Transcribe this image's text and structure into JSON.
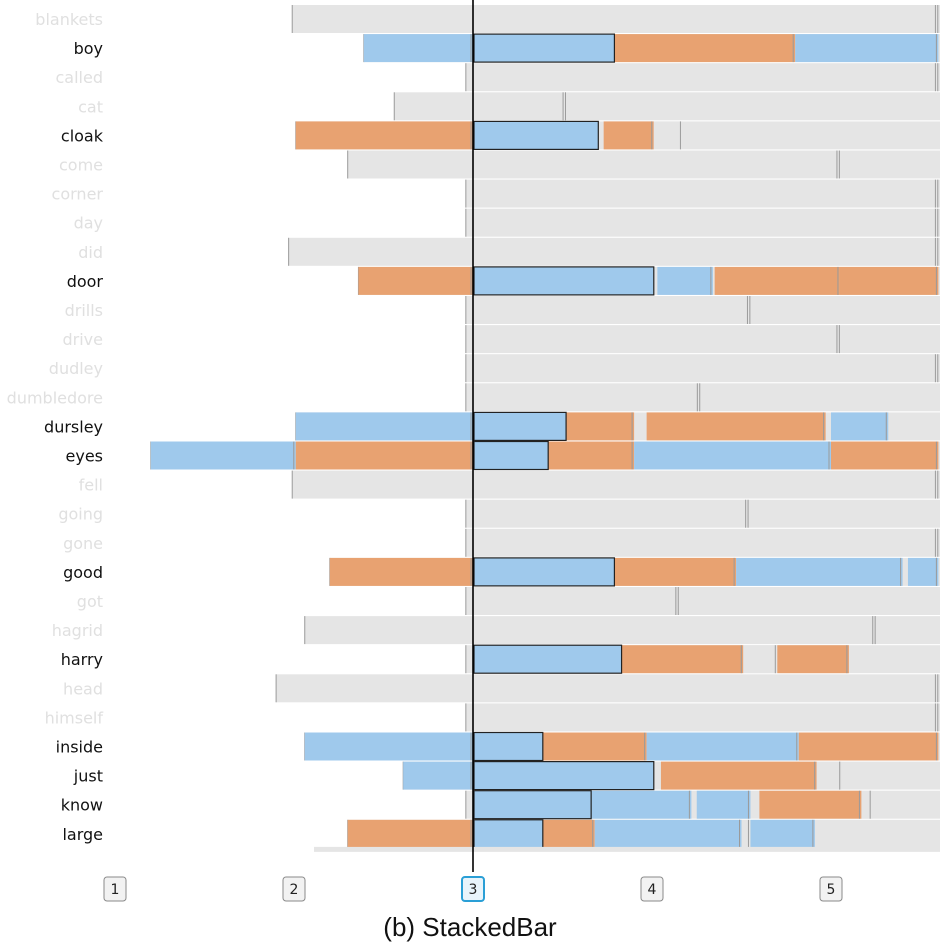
{
  "caption": "(b) StackedBar",
  "colors": {
    "blue": "#9fc9ec",
    "orange": "#e8a271",
    "gray": "#e5e5e5",
    "tick": "#9a9a9a",
    "label_active": "#111111",
    "label_inactive": "#e0e0e0",
    "axis": "#000000"
  },
  "chart_data": {
    "type": "bar",
    "x_ticks": [
      "1",
      "2",
      "3",
      "4",
      "5"
    ],
    "selected_tick": "3",
    "xlim": [
      1.0,
      5.6
    ],
    "series_colors": [
      "blue",
      "orange",
      "gray"
    ],
    "rows": [
      {
        "label": "blankets",
        "active": false,
        "start": 1.99,
        "segs": [
          [
            "gray",
            4.82,
            4.83,
            4.84,
            4.85,
            4.86,
            4.87
          ],
          [
            "gray",
            5.6
          ]
        ],
        "base_end": 3.0
      },
      {
        "label": "boy",
        "active": true,
        "start": 2.39,
        "base_end": 3.79,
        "segs": [
          [
            "blue",
            2.39,
            3.0
          ],
          [
            "orange",
            3.79,
            4.8
          ],
          [
            "blue",
            4.8,
            5.6
          ]
        ]
      },
      {
        "label": "called",
        "active": false,
        "start": 2.96,
        "segs": [
          [
            "gray",
            5.6
          ]
        ]
      },
      {
        "label": "cat",
        "active": false,
        "start": 2.56,
        "segs": [
          [
            "gray",
            3.52
          ]
        ]
      },
      {
        "label": "cloak",
        "active": true,
        "start": 2.01,
        "base_end": 3.7,
        "segs": [
          [
            "orange",
            2.01,
            3.0
          ],
          [
            "orange",
            3.73,
            4.01
          ],
          [
            "gray",
            4.01,
            4.17
          ]
        ]
      },
      {
        "label": "come",
        "active": false,
        "start": 2.3,
        "segs": [
          [
            "gray",
            5.05
          ]
        ]
      },
      {
        "label": "corner",
        "active": false,
        "start": 2.96,
        "segs": [
          [
            "gray",
            5.6
          ]
        ]
      },
      {
        "label": "day",
        "active": false,
        "start": 2.96,
        "segs": [
          [
            "gray",
            5.6
          ]
        ]
      },
      {
        "label": "did",
        "active": false,
        "start": 1.97,
        "segs": [
          [
            "gray",
            5.6
          ]
        ]
      },
      {
        "label": "door",
        "active": true,
        "start": 2.36,
        "base_end": 4.01,
        "segs": [
          [
            "orange",
            2.36,
            3.0
          ],
          [
            "blue",
            4.03,
            4.34
          ],
          [
            "orange",
            4.35,
            5.05
          ],
          [
            "orange",
            5.05,
            5.6
          ]
        ]
      },
      {
        "label": "drills",
        "active": false,
        "start": 2.96,
        "segs": [
          [
            "gray",
            4.55
          ]
        ]
      },
      {
        "label": "drive",
        "active": false,
        "start": 2.96,
        "segs": [
          [
            "gray",
            5.05
          ]
        ]
      },
      {
        "label": "dudley",
        "active": false,
        "start": 2.96,
        "segs": [
          [
            "gray",
            5.6
          ]
        ]
      },
      {
        "label": "dumbledore",
        "active": false,
        "start": 2.96,
        "segs": [
          [
            "gray",
            4.27
          ]
        ]
      },
      {
        "label": "dursley",
        "active": true,
        "start": 2.01,
        "base_end": 3.52,
        "segs": [
          [
            "blue",
            2.01,
            3.0
          ],
          [
            "orange",
            3.52,
            3.9
          ],
          [
            "orange",
            3.97,
            4.97
          ],
          [
            "blue",
            5.0,
            5.32
          ]
        ]
      },
      {
        "label": "eyes",
        "active": true,
        "start": 1.2,
        "base_end": 3.42,
        "segs": [
          [
            "blue",
            1.2,
            2.01
          ],
          [
            "orange",
            2.01,
            3.0
          ],
          [
            "orange",
            3.42,
            3.9
          ],
          [
            "blue",
            3.9,
            5.0
          ],
          [
            "orange",
            5.0,
            5.6
          ]
        ]
      },
      {
        "label": "fell",
        "active": false,
        "start": 1.99,
        "segs": [
          [
            "gray",
            5.6
          ]
        ]
      },
      {
        "label": "going",
        "active": false,
        "start": 2.96,
        "segs": [
          [
            "gray",
            4.54
          ]
        ]
      },
      {
        "label": "gone",
        "active": false,
        "start": 2.96,
        "segs": [
          [
            "gray",
            5.6
          ]
        ]
      },
      {
        "label": "good",
        "active": true,
        "start": 2.2,
        "base_end": 3.79,
        "segs": [
          [
            "orange",
            2.2,
            3.0
          ],
          [
            "orange",
            3.79,
            4.47
          ],
          [
            "blue",
            4.47,
            5.4
          ],
          [
            "blue",
            5.43,
            5.6
          ]
        ]
      },
      {
        "label": "got",
        "active": false,
        "start": 2.96,
        "segs": [
          [
            "gray",
            4.15
          ]
        ]
      },
      {
        "label": "hagrid",
        "active": false,
        "start": 2.06,
        "segs": [
          [
            "gray",
            5.25
          ]
        ]
      },
      {
        "label": "harry",
        "active": true,
        "start": 2.96,
        "base_end": 3.83,
        "segs": [
          [
            "orange",
            3.83,
            4.51
          ],
          [
            "gray",
            4.51,
            4.7
          ],
          [
            "orange",
            4.7,
            5.1
          ]
        ]
      },
      {
        "label": "head",
        "active": false,
        "start": 1.9,
        "segs": [
          [
            "gray",
            5.6
          ]
        ]
      },
      {
        "label": "himself",
        "active": false,
        "start": 2.96,
        "segs": [
          [
            "gray",
            5.6
          ]
        ]
      },
      {
        "label": "inside",
        "active": true,
        "start": 2.06,
        "base_end": 3.39,
        "segs": [
          [
            "blue",
            2.06,
            3.0
          ],
          [
            "orange",
            3.39,
            3.97
          ],
          [
            "blue",
            3.97,
            4.82
          ],
          [
            "orange",
            4.82,
            5.6
          ]
        ]
      },
      {
        "label": "just",
        "active": true,
        "start": 2.61,
        "base_end": 4.01,
        "segs": [
          [
            "blue",
            2.61,
            3.0
          ],
          [
            "orange",
            4.05,
            4.92
          ],
          [
            "gray",
            4.92,
            5.06
          ]
        ]
      },
      {
        "label": "know",
        "active": true,
        "start": 2.96,
        "base_end": 3.66,
        "segs": [
          [
            "blue",
            3.66,
            4.22
          ],
          [
            "blue",
            4.25,
            4.55
          ],
          [
            "orange",
            4.6,
            5.17
          ],
          [
            "gray",
            5.17,
            5.23
          ]
        ]
      },
      {
        "label": "large",
        "active": true,
        "start": 2.3,
        "base_end": 3.39,
        "segs": [
          [
            "orange",
            2.3,
            3.0
          ],
          [
            "orange",
            3.39,
            3.68
          ],
          [
            "blue",
            3.68,
            4.5
          ],
          [
            "gray",
            4.5,
            4.55
          ],
          [
            "blue",
            4.55,
            4.91
          ]
        ]
      }
    ]
  }
}
